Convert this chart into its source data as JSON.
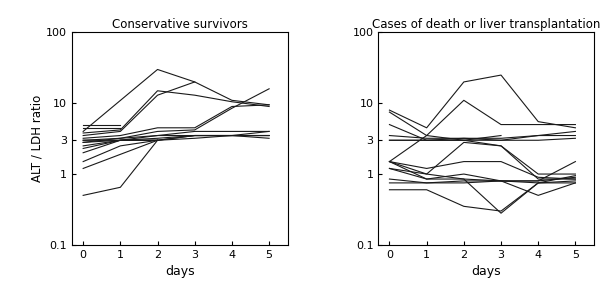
{
  "title_left": "Conservative survivors",
  "title_right": "Cases of death or liver transplantation",
  "xlabel": "days",
  "ylabel": "ALT / LDH ratio",
  "ylim_log": [
    0.1,
    100
  ],
  "xlim": [
    -0.3,
    5.5
  ],
  "xticks": [
    0,
    1,
    2,
    3,
    4,
    5
  ],
  "yticks": [
    0.1,
    1,
    3,
    10,
    100
  ],
  "yticklabels": [
    "0.1",
    "1",
    "3",
    "10",
    "100"
  ],
  "line_color": "#1a1a1a",
  "survivors_lines": [
    {
      "x": [
        0,
        1
      ],
      "y": [
        5.0,
        5.0
      ]
    },
    {
      "x": [
        0,
        1
      ],
      "y": [
        4.5,
        4.5
      ]
    },
    {
      "x": [
        0,
        2,
        3
      ],
      "y": [
        4.0,
        30.0,
        20.0
      ]
    },
    {
      "x": [
        0,
        1,
        2,
        3,
        4,
        5
      ],
      "y": [
        3.8,
        4.2,
        15.0,
        13.0,
        10.5,
        9.0
      ]
    },
    {
      "x": [
        0,
        1,
        2,
        3,
        4,
        5
      ],
      "y": [
        3.5,
        4.0,
        13.0,
        20.0,
        11.0,
        9.5
      ]
    },
    {
      "x": [
        0,
        1,
        2,
        3,
        4,
        5
      ],
      "y": [
        3.2,
        3.5,
        4.5,
        4.5,
        9.0,
        9.5
      ]
    },
    {
      "x": [
        0,
        1,
        2,
        3,
        4,
        5
      ],
      "y": [
        3.0,
        3.2,
        4.0,
        4.2,
        8.5,
        16.0
      ]
    },
    {
      "x": [
        0,
        1,
        2,
        3,
        4,
        5
      ],
      "y": [
        3.0,
        3.0,
        3.5,
        4.0,
        4.0,
        4.0
      ]
    },
    {
      "x": [
        0,
        1,
        2,
        3,
        4,
        5
      ],
      "y": [
        2.8,
        3.2,
        3.5,
        3.5,
        3.5,
        4.0
      ]
    },
    {
      "x": [
        0,
        1,
        2,
        3,
        4,
        5
      ],
      "y": [
        2.8,
        3.0,
        3.2,
        3.5,
        3.5,
        3.5
      ]
    },
    {
      "x": [
        0,
        1,
        2,
        3,
        4,
        5
      ],
      "y": [
        2.5,
        3.0,
        3.0,
        3.5,
        3.5,
        3.5
      ]
    },
    {
      "x": [
        0,
        1,
        2,
        3,
        4,
        5
      ],
      "y": [
        2.3,
        3.0,
        3.0,
        3.2,
        3.5,
        3.2
      ]
    },
    {
      "x": [
        0,
        1,
        2
      ],
      "y": [
        2.0,
        3.0,
        3.0
      ]
    },
    {
      "x": [
        0,
        1,
        2,
        3,
        4,
        5
      ],
      "y": [
        1.5,
        2.5,
        3.0,
        3.5,
        3.5,
        3.5
      ]
    },
    {
      "x": [
        0,
        2
      ],
      "y": [
        1.2,
        3.0
      ]
    },
    {
      "x": [
        0,
        1,
        2
      ],
      "y": [
        0.5,
        0.65,
        3.0
      ]
    }
  ],
  "death_lines": [
    {
      "x": [
        0,
        1,
        2,
        3,
        4,
        5
      ],
      "y": [
        8.0,
        4.5,
        20.0,
        25.0,
        5.5,
        4.5
      ]
    },
    {
      "x": [
        0,
        1,
        2,
        3,
        4,
        5
      ],
      "y": [
        7.5,
        3.5,
        11.0,
        5.0,
        5.0,
        5.0
      ]
    },
    {
      "x": [
        0,
        1,
        2,
        3
      ],
      "y": [
        5.0,
        3.0,
        3.0,
        3.5
      ]
    },
    {
      "x": [
        0,
        1,
        2,
        3,
        4,
        5
      ],
      "y": [
        3.5,
        3.2,
        3.2,
        3.0,
        3.5,
        4.0
      ]
    },
    {
      "x": [
        0,
        1,
        2,
        3,
        4,
        5
      ],
      "y": [
        3.0,
        3.0,
        3.2,
        3.2,
        3.5,
        3.5
      ]
    },
    {
      "x": [
        0,
        1,
        2,
        3,
        4,
        5
      ],
      "y": [
        3.0,
        3.0,
        3.0,
        3.0,
        3.0,
        3.2
      ]
    },
    {
      "x": [
        0,
        1,
        2,
        3,
        4,
        5
      ],
      "y": [
        1.5,
        3.5,
        3.0,
        2.5,
        0.85,
        0.85
      ]
    },
    {
      "x": [
        0,
        1,
        2,
        3,
        4,
        5
      ],
      "y": [
        1.5,
        1.0,
        2.8,
        2.5,
        1.0,
        1.0
      ]
    },
    {
      "x": [
        0,
        1,
        2,
        3,
        4,
        5
      ],
      "y": [
        1.5,
        1.2,
        1.5,
        1.5,
        0.9,
        0.85
      ]
    },
    {
      "x": [
        0,
        1,
        2,
        3,
        4,
        5
      ],
      "y": [
        1.5,
        0.85,
        1.0,
        0.8,
        0.75,
        0.8
      ]
    },
    {
      "x": [
        0,
        1,
        2,
        3,
        4,
        5
      ],
      "y": [
        1.2,
        1.0,
        0.85,
        0.8,
        0.8,
        0.9
      ]
    },
    {
      "x": [
        0,
        1,
        2,
        3,
        4,
        5
      ],
      "y": [
        1.2,
        0.85,
        0.85,
        0.28,
        0.75,
        0.75
      ]
    },
    {
      "x": [
        0,
        1,
        2,
        3,
        4,
        5
      ],
      "y": [
        0.85,
        0.75,
        0.75,
        0.8,
        0.5,
        0.75
      ]
    },
    {
      "x": [
        0,
        1,
        2,
        3,
        4,
        5
      ],
      "y": [
        0.75,
        0.75,
        0.8,
        0.8,
        0.8,
        1.5
      ]
    },
    {
      "x": [
        0,
        1,
        2,
        3,
        4,
        5
      ],
      "y": [
        0.6,
        0.6,
        0.35,
        0.3,
        0.75,
        0.95
      ]
    }
  ]
}
